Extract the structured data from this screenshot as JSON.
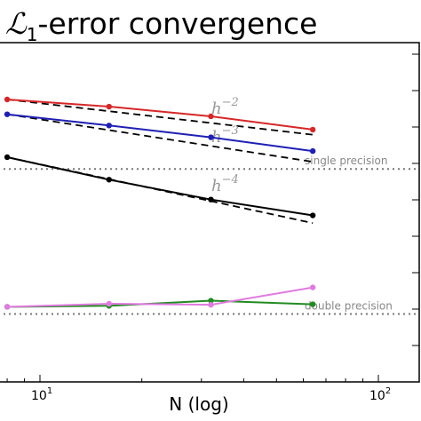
{
  "chart_data": {
    "type": "line",
    "title": "-error convergence",
    "title_symbol": "ℒ",
    "title_subscript": "1",
    "xlabel": "N (log)",
    "x_scale": "log",
    "x_ticks": [
      {
        "value": 10,
        "base": "10",
        "exp": "1"
      },
      {
        "value": 100,
        "base": "10",
        "exp": "2"
      }
    ],
    "grid": false,
    "series": [
      {
        "color": "#d62728",
        "x": [
          8,
          16,
          32,
          64
        ],
        "y": [
          0.0,
          0.7,
          1.65,
          2.95
        ]
      },
      {
        "color": "#1f1fb4",
        "x": [
          8,
          16,
          32,
          64
        ],
        "y": [
          1.45,
          2.55,
          3.7,
          5.05
        ]
      },
      {
        "color": "#000000",
        "x": [
          8,
          16,
          32,
          64
        ],
        "y": [
          5.65,
          7.85,
          9.8,
          11.35
        ]
      },
      {
        "color": "#228b22",
        "x": [
          8,
          16,
          32,
          64
        ],
        "y": [
          20.3,
          20.2,
          19.7,
          20.05
        ]
      },
      {
        "color": "#e07be0",
        "x": [
          8,
          16,
          32,
          64
        ],
        "y": [
          20.3,
          20.0,
          20.1,
          18.4
        ]
      }
    ],
    "reference_lines": [
      {
        "label_base": "h",
        "label_exp": "−2",
        "color": "#000000",
        "x": [
          8,
          64
        ],
        "y": [
          0.0,
          3.45
        ]
      },
      {
        "label_base": "h",
        "label_exp": "−3",
        "color": "#000000",
        "x": [
          8,
          64
        ],
        "y": [
          1.45,
          6.1
        ]
      },
      {
        "label_base": "h",
        "label_exp": "−4",
        "color": "#000000",
        "x": [
          8,
          64
        ],
        "y": [
          5.65,
          12.1
        ]
      }
    ],
    "thresholds": [
      {
        "label": "single precision",
        "y": 6.8
      },
      {
        "label": "double precision",
        "y": 21.0
      }
    ]
  }
}
